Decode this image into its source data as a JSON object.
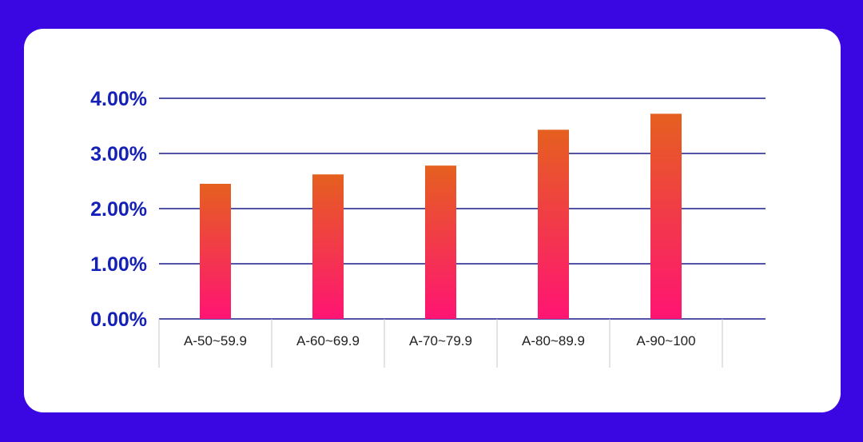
{
  "colors": {
    "background": "#3a06e2",
    "card": "#ffffff",
    "gridline": "#1a1a8c",
    "tick_label": "#1420b8",
    "bar_top": "#e5601f",
    "bar_bottom": "#ff1473"
  },
  "chart_data": {
    "type": "bar",
    "categories": [
      "A-50~59.9",
      "A-60~69.9",
      "A-70~79.9",
      "A-80~89.9",
      "A-90~100"
    ],
    "values": [
      2.45,
      2.62,
      2.78,
      3.43,
      3.72
    ],
    "ylim": [
      0,
      4
    ],
    "yticks": [
      "0.00%",
      "1.00%",
      "2.00%",
      "3.00%",
      "4.00%"
    ],
    "grid": true,
    "legend": "none"
  }
}
